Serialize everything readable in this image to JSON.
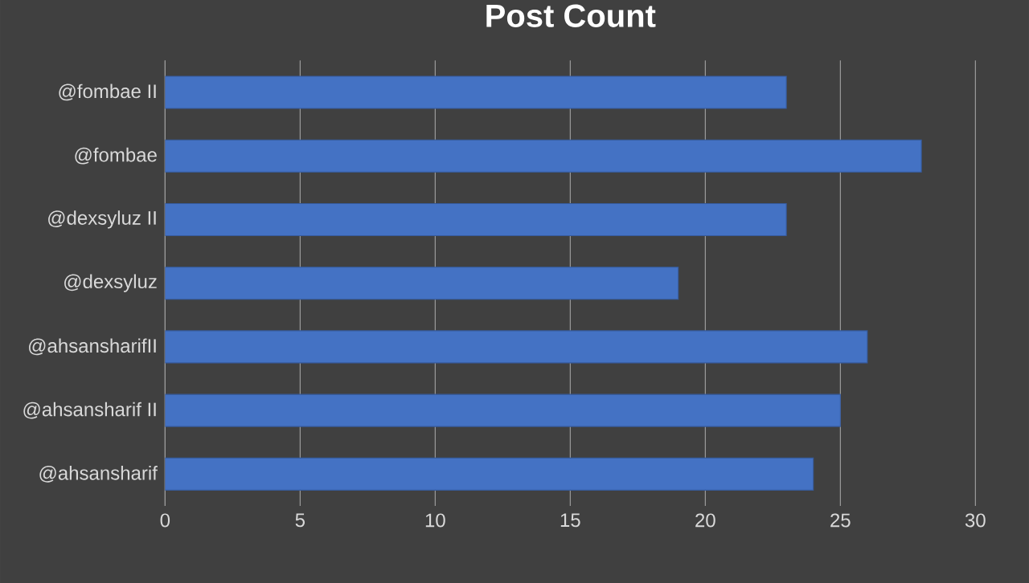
{
  "chart_data": {
    "type": "bar",
    "orientation": "horizontal",
    "title": "Post Count",
    "categories": [
      "@fombae II",
      "@fombae",
      "@dexsyluz II",
      "@dexsyluz",
      "@ahsansharifII",
      "@ahsansharif II",
      "@ahsansharif"
    ],
    "values": [
      23,
      28,
      23,
      19,
      26,
      25,
      24
    ],
    "color": "#4472c4",
    "xlim": [
      0,
      30
    ],
    "xticks": [
      0,
      5,
      10,
      15,
      20,
      25,
      30
    ],
    "grid": "x"
  }
}
